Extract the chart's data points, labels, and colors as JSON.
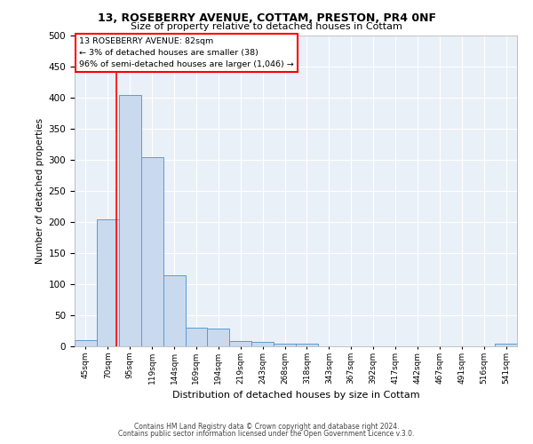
{
  "title1": "13, ROSEBERRY AVENUE, COTTAM, PRESTON, PR4 0NF",
  "title2": "Size of property relative to detached houses in Cottam",
  "xlabel": "Distribution of detached houses by size in Cottam",
  "ylabel": "Number of detached properties",
  "bar_labels": [
    "45sqm",
    "70sqm",
    "95sqm",
    "119sqm",
    "144sqm",
    "169sqm",
    "194sqm",
    "219sqm",
    "243sqm",
    "268sqm",
    "318sqm",
    "343sqm",
    "367sqm",
    "392sqm",
    "417sqm",
    "442sqm",
    "467sqm",
    "491sqm",
    "516sqm",
    "541sqm"
  ],
  "bar_heights": [
    10,
    205,
    405,
    305,
    115,
    30,
    28,
    8,
    7,
    5,
    5,
    0,
    0,
    0,
    0,
    0,
    0,
    0,
    0,
    5
  ],
  "bar_color": "#c9d9ee",
  "bar_edge_color": "#5b9bd5",
  "ylim": [
    0,
    500
  ],
  "yticks": [
    0,
    50,
    100,
    150,
    200,
    250,
    300,
    350,
    400,
    450,
    500
  ],
  "red_line_x": 1.37,
  "annotation_lines": [
    "13 ROSEBERRY AVENUE: 82sqm",
    "← 3% of detached houses are smaller (38)",
    "96% of semi-detached houses are larger (1,046) →"
  ],
  "footer1": "Contains HM Land Registry data © Crown copyright and database right 2024.",
  "footer2": "Contains public sector information licensed under the Open Government Licence v.3.0.",
  "plot_bg_color": "#eaf0f8"
}
